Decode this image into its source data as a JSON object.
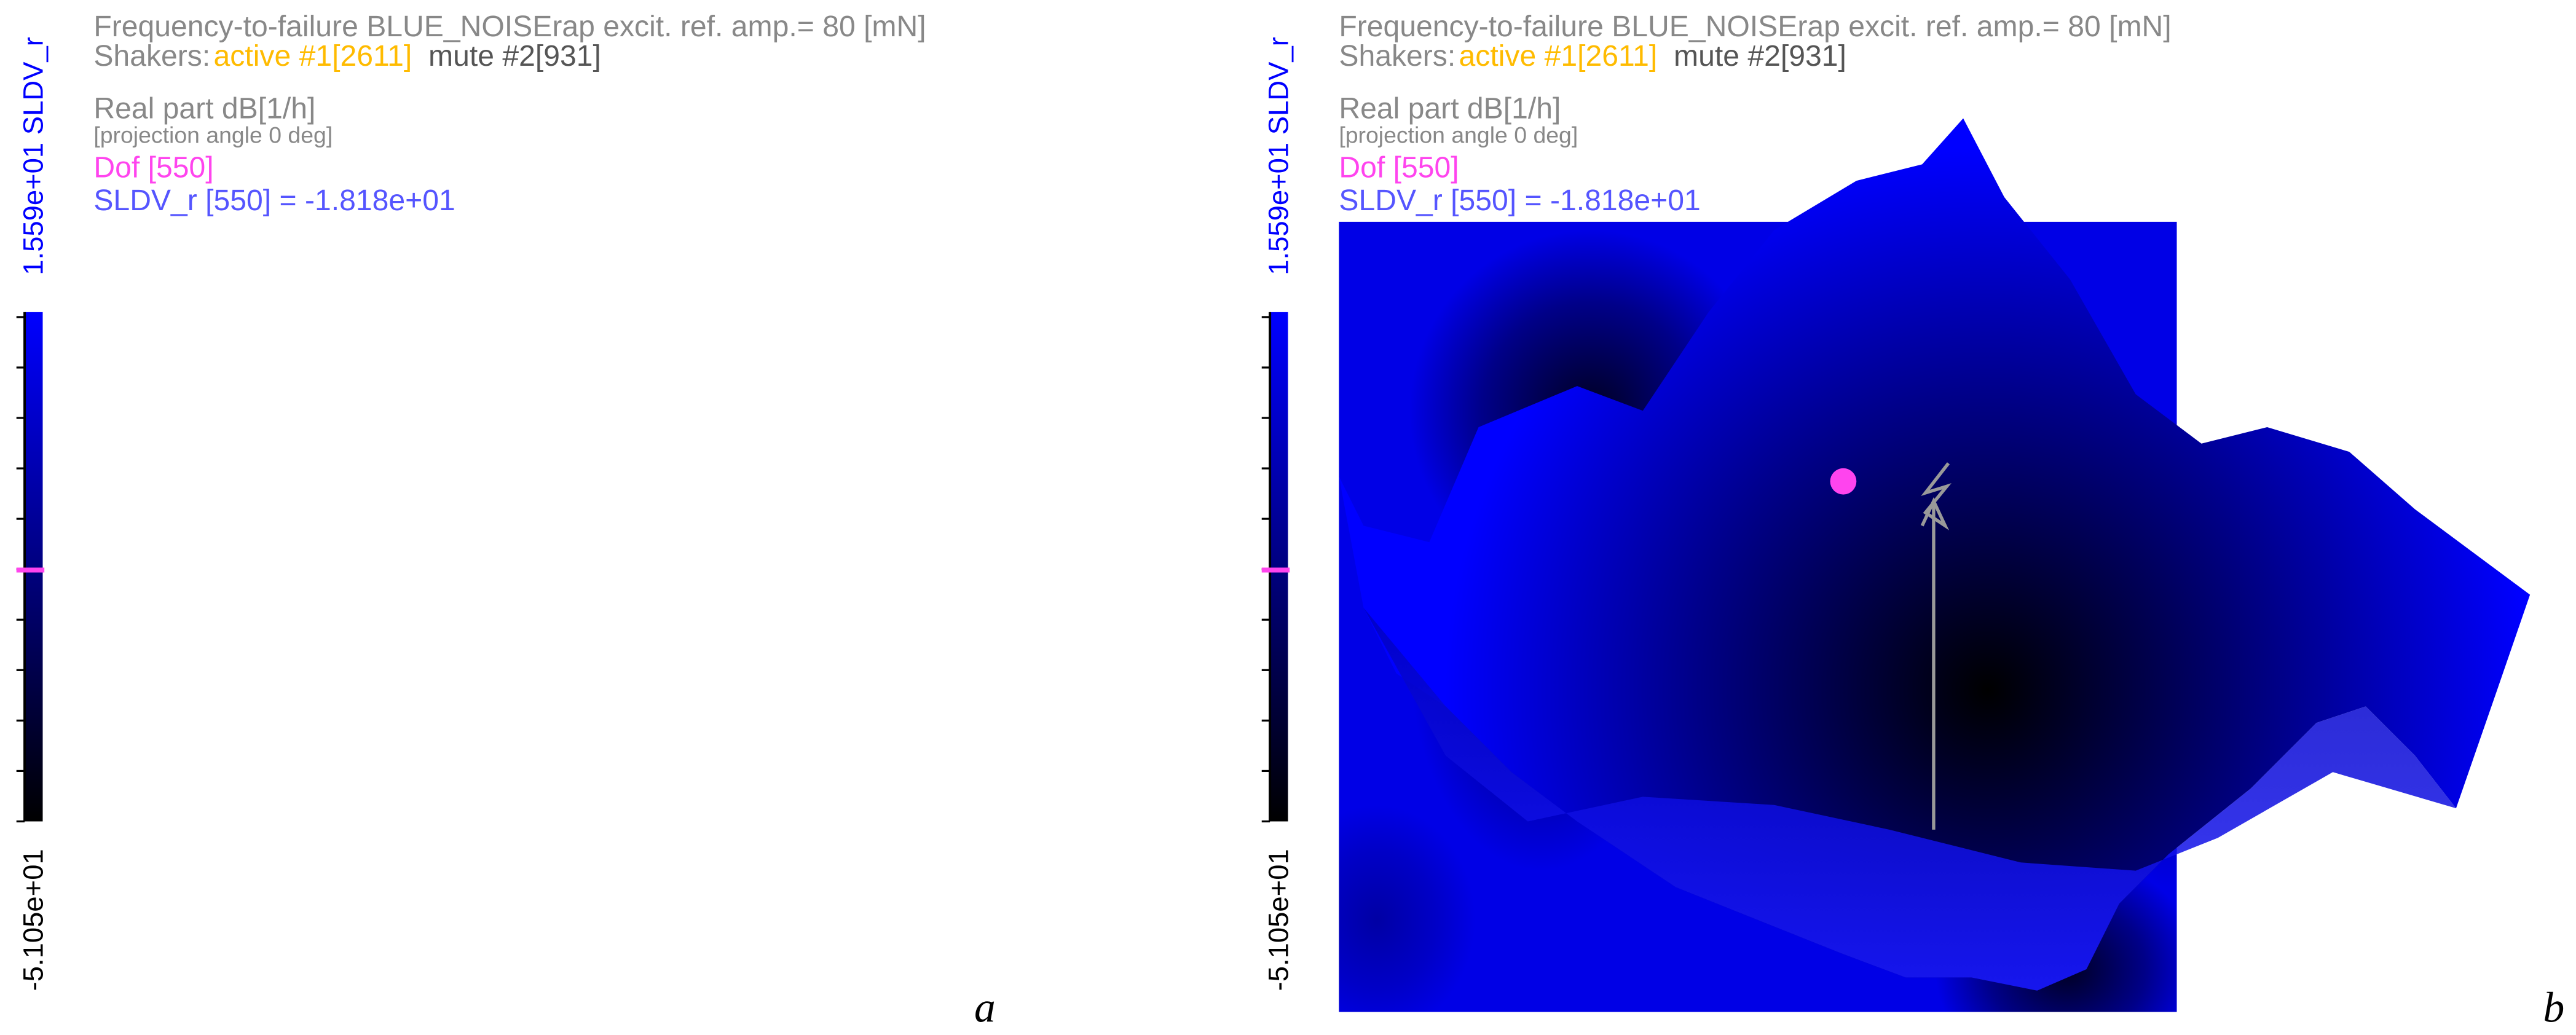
{
  "panels": [
    {
      "title": "Frequency-to-failure BLUE_NOISErap excit. ref. amp.= 80 [mN]",
      "shakers_label": "Shakers:",
      "active": "active #1[2611]",
      "mute": "mute #2[931]",
      "quantity": "Real part dB[1/h]",
      "projection": "[projection angle 0 deg]",
      "dof": "Dof [550]",
      "readout": "SLDV_r [550] = -1.818e+01",
      "colorbar_max": "1.559e+01 SLDV_r",
      "colorbar_min": "-5.105e+01",
      "caption": "a"
    },
    {
      "title": "Frequency-to-failure BLUE_NOISErap excit. ref. amp.= 80 [mN]",
      "shakers_label": "Shakers:",
      "active": "active #1[2611]",
      "mute": "mute #2[931]",
      "quantity": "Real part dB[1/h]",
      "projection": "[projection angle 0 deg]",
      "dof": "Dof [550]",
      "readout": "SLDV_r [550] = -1.818e+01",
      "colorbar_max": "1.559e+01 SLDV_r",
      "colorbar_min": "-5.105e+01",
      "caption": "b"
    }
  ]
}
